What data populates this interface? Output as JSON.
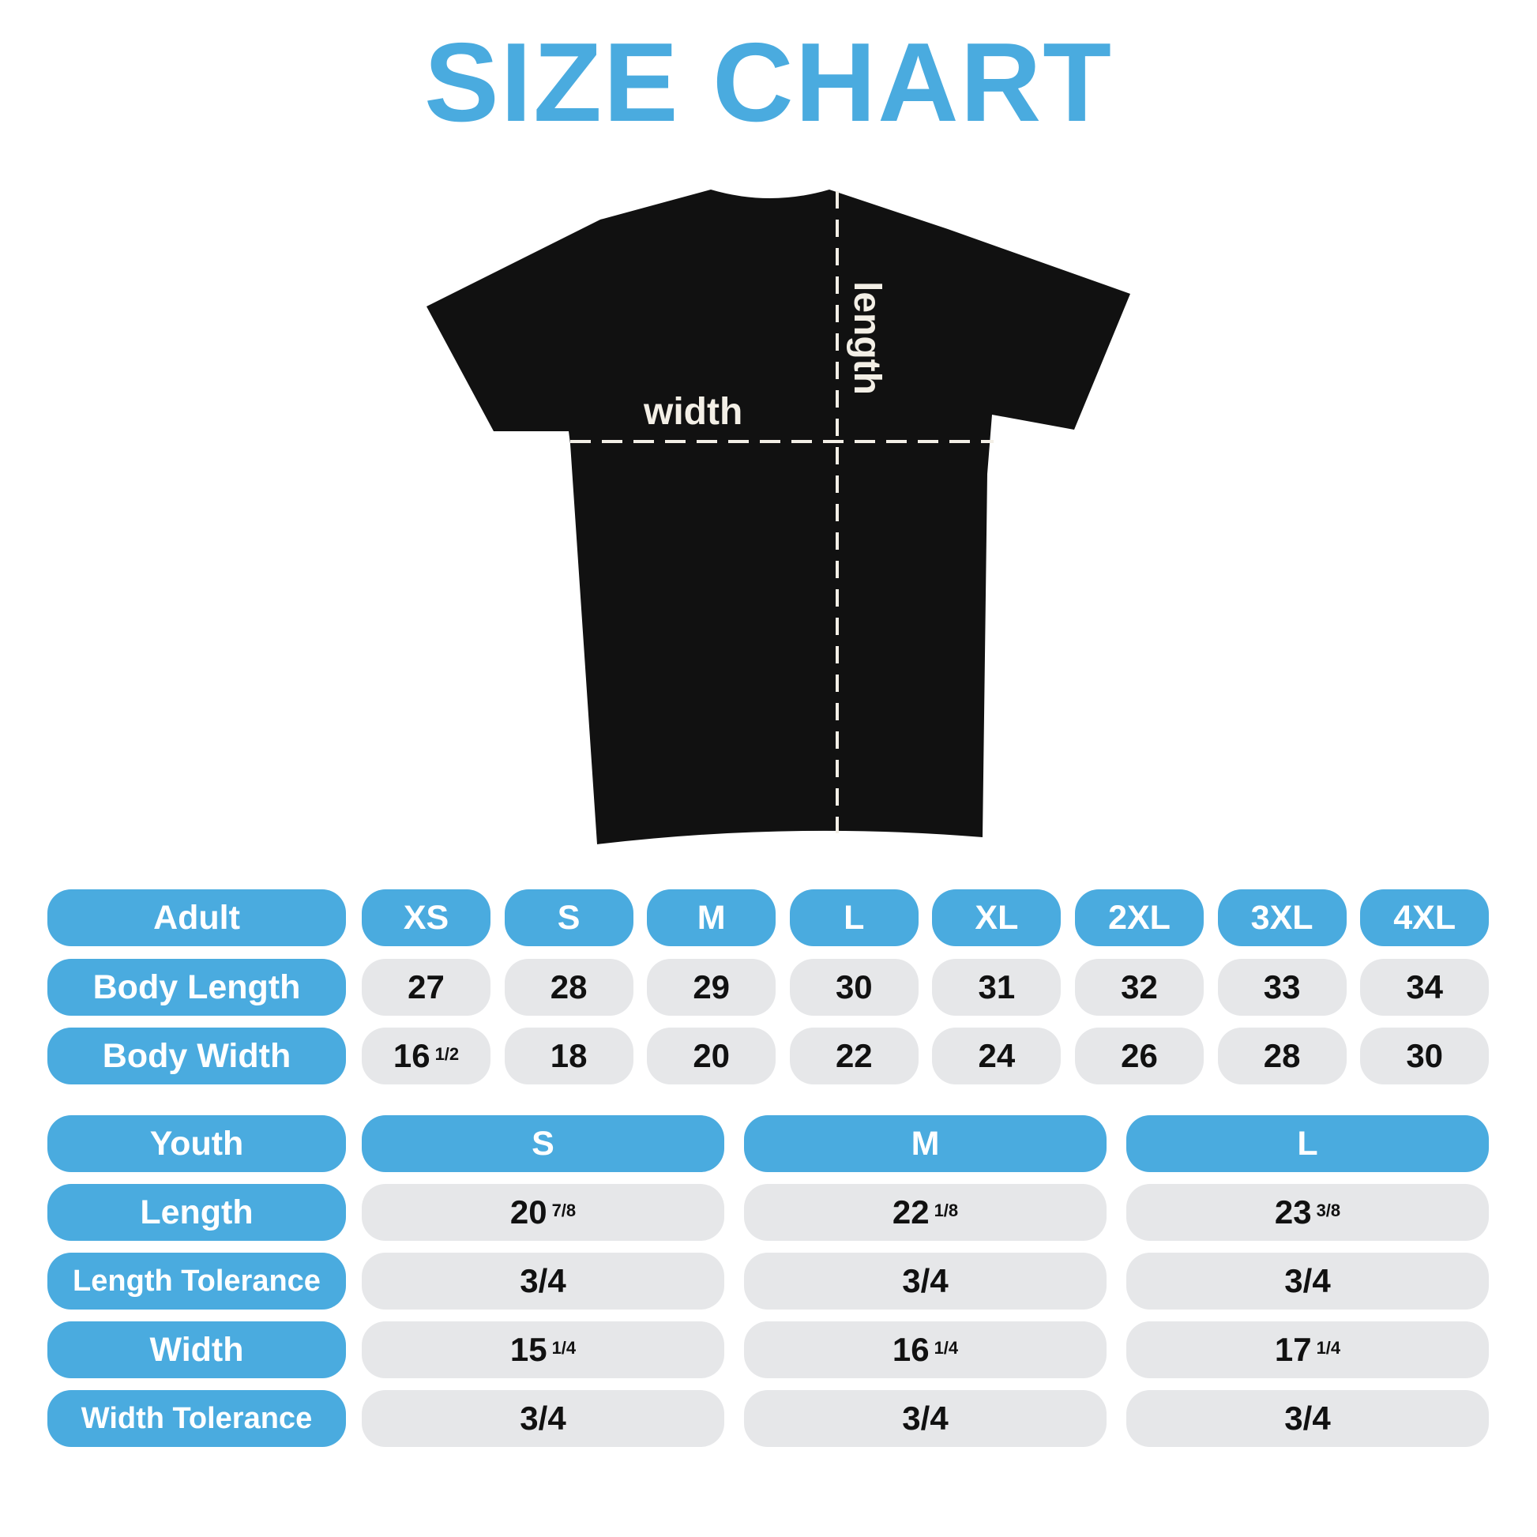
{
  "title": "SIZE CHART",
  "colors": {
    "accent": "#4aabdf",
    "cell": "#e6e7e9",
    "shirt": "#111111"
  },
  "diagram": {
    "width_label": "width",
    "length_label": "length"
  },
  "adult": {
    "header": "Adult",
    "sizes": [
      "XS",
      "S",
      "M",
      "L",
      "XL",
      "2XL",
      "3XL",
      "4XL"
    ],
    "rows": [
      {
        "label": "Body Length",
        "values": [
          {
            "w": "27",
            "f": ""
          },
          {
            "w": "28",
            "f": ""
          },
          {
            "w": "29",
            "f": ""
          },
          {
            "w": "30",
            "f": ""
          },
          {
            "w": "31",
            "f": ""
          },
          {
            "w": "32",
            "f": ""
          },
          {
            "w": "33",
            "f": ""
          },
          {
            "w": "34",
            "f": ""
          }
        ]
      },
      {
        "label": "Body Width",
        "values": [
          {
            "w": "16",
            "f": "1/2"
          },
          {
            "w": "18",
            "f": ""
          },
          {
            "w": "20",
            "f": ""
          },
          {
            "w": "22",
            "f": ""
          },
          {
            "w": "24",
            "f": ""
          },
          {
            "w": "26",
            "f": ""
          },
          {
            "w": "28",
            "f": ""
          },
          {
            "w": "30",
            "f": ""
          }
        ]
      }
    ]
  },
  "youth": {
    "header": "Youth",
    "sizes": [
      "S",
      "M",
      "L"
    ],
    "rows": [
      {
        "label": "Length",
        "values": [
          {
            "w": "20",
            "f": "7/8"
          },
          {
            "w": "22",
            "f": "1/8"
          },
          {
            "w": "23",
            "f": "3/8"
          }
        ]
      },
      {
        "label": "Length Tolerance",
        "values": [
          {
            "w": "3/4",
            "f": ""
          },
          {
            "w": "3/4",
            "f": ""
          },
          {
            "w": "3/4",
            "f": ""
          }
        ]
      },
      {
        "label": "Width",
        "values": [
          {
            "w": "15",
            "f": "1/4"
          },
          {
            "w": "16",
            "f": "1/4"
          },
          {
            "w": "17",
            "f": "1/4"
          }
        ]
      },
      {
        "label": "Width Tolerance",
        "values": [
          {
            "w": "3/4",
            "f": ""
          },
          {
            "w": "3/4",
            "f": ""
          },
          {
            "w": "3/4",
            "f": ""
          }
        ]
      }
    ]
  }
}
